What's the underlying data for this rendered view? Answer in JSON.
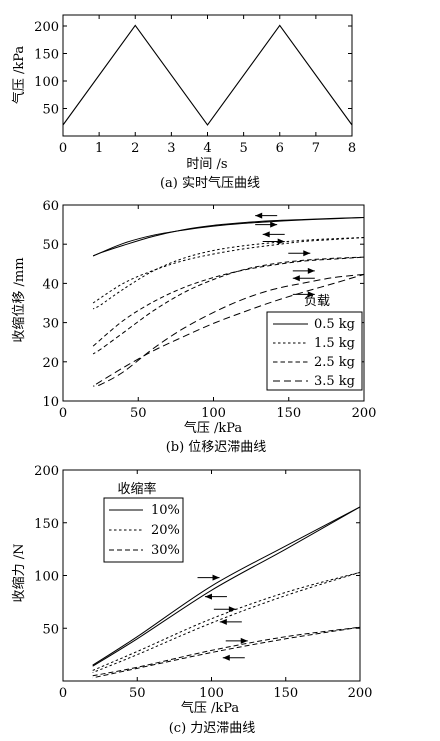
{
  "chart_data": [
    {
      "type": "line",
      "caption": "(a) 实时气压曲线",
      "xlabel": "时间 /s",
      "ylabel": "气压 /kPa",
      "xlim": [
        0,
        8
      ],
      "ylim": [
        0,
        220
      ],
      "xticks": [
        "0",
        "1",
        "2",
        "3",
        "4",
        "5",
        "6",
        "7",
        "8"
      ],
      "yticks": [
        "50",
        "100",
        "150",
        "200"
      ],
      "series": [
        {
          "x": [
            0,
            2,
            4,
            6,
            8
          ],
          "values": [
            20,
            201,
            20,
            201,
            20
          ]
        }
      ]
    },
    {
      "type": "line",
      "caption": "(b) 位移迟滞曲线",
      "xlabel": "气压 /kPa",
      "ylabel": "收缩位移 /mm",
      "xlim": [
        0,
        200
      ],
      "ylim": [
        10,
        60
      ],
      "xticks": [
        "0",
        "50",
        "100",
        "150",
        "200"
      ],
      "yticks": [
        "10",
        "20",
        "30",
        "40",
        "50",
        "60"
      ],
      "legend_title": "负载",
      "legend_position": "bottom-right",
      "series": [
        {
          "name": "0.5 kg",
          "loading": [
            [
              20,
              47
            ],
            [
              40,
              50.2
            ],
            [
              60,
              52.3
            ],
            [
              80,
              53.6
            ],
            [
              100,
              54.6
            ],
            [
              120,
              55.3
            ],
            [
              140,
              55.8
            ],
            [
              160,
              56.2
            ],
            [
              180,
              56.5
            ],
            [
              200,
              56.8
            ]
          ],
          "unloading": [
            [
              200,
              56.8
            ],
            [
              180,
              56.6
            ],
            [
              160,
              56.3
            ],
            [
              140,
              56
            ],
            [
              120,
              55.5
            ],
            [
              100,
              54.8
            ],
            [
              80,
              53.7
            ],
            [
              60,
              52
            ],
            [
              40,
              49.7
            ],
            [
              25,
              47.8
            ],
            [
              20,
              47
            ]
          ]
        },
        {
          "name": "1.5 kg",
          "loading": [
            [
              20,
              35
            ],
            [
              40,
              40
            ],
            [
              60,
              43.3
            ],
            [
              80,
              45.8
            ],
            [
              100,
              47.5
            ],
            [
              120,
              48.8
            ],
            [
              140,
              49.8
            ],
            [
              160,
              50.7
            ],
            [
              180,
              51.2
            ],
            [
              200,
              51.7
            ]
          ],
          "unloading": [
            [
              200,
              51.7
            ],
            [
              180,
              51.4
            ],
            [
              160,
              51
            ],
            [
              140,
              50.4
            ],
            [
              120,
              49.6
            ],
            [
              100,
              48.4
            ],
            [
              80,
              46.4
            ],
            [
              60,
              43.2
            ],
            [
              40,
              38.5
            ],
            [
              25,
              34.5
            ],
            [
              20,
              33.5
            ]
          ]
        },
        {
          "name": "2.5 kg",
          "loading": [
            [
              20,
              24
            ],
            [
              40,
              30.5
            ],
            [
              60,
              35.3
            ],
            [
              80,
              38.9
            ],
            [
              100,
              41.5
            ],
            [
              120,
              43.4
            ],
            [
              140,
              44.7
            ],
            [
              160,
              45.7
            ],
            [
              180,
              46.2
            ],
            [
              200,
              46.7
            ]
          ],
          "unloading": [
            [
              200,
              46.7
            ],
            [
              180,
              46.4
            ],
            [
              160,
              45.9
            ],
            [
              140,
              45
            ],
            [
              120,
              43.5
            ],
            [
              100,
              41
            ],
            [
              80,
              37.6
            ],
            [
              60,
              33
            ],
            [
              40,
              27.4
            ],
            [
              25,
              23.2
            ],
            [
              20,
              22
            ]
          ]
        },
        {
          "name": "3.5 kg",
          "loading": [
            [
              22,
              14.3
            ],
            [
              40,
              18.5
            ],
            [
              60,
              22.8
            ],
            [
              80,
              26.4
            ],
            [
              100,
              29.8
            ],
            [
              120,
              32.7
            ],
            [
              140,
              35.4
            ],
            [
              160,
              37.8
            ],
            [
              180,
              40
            ],
            [
              200,
              42.3
            ]
          ],
          "unloading": [
            [
              200,
              42.3
            ],
            [
              180,
              41.5
            ],
            [
              160,
              40.1
            ],
            [
              140,
              38.5
            ],
            [
              120,
              36
            ],
            [
              100,
              32.6
            ],
            [
              80,
              28.5
            ],
            [
              60,
              23.4
            ],
            [
              40,
              17.4
            ],
            [
              25,
              14.2
            ],
            [
              20,
              13.8
            ]
          ]
        }
      ]
    },
    {
      "type": "line",
      "caption": "(c) 力迟滞曲线",
      "xlabel": "气压 /kPa",
      "ylabel": "收缩力 /N",
      "xlim": [
        0,
        200
      ],
      "ylim": [
        0,
        200
      ],
      "xticks": [
        "0",
        "50",
        "100",
        "150",
        "200"
      ],
      "yticks": [
        "50",
        "100",
        "150",
        "200"
      ],
      "legend_title": "收缩率",
      "legend_position": "top-left",
      "series": [
        {
          "name": "10%",
          "loading": [
            [
              20,
              15
            ],
            [
              50,
              42
            ],
            [
              100,
              90
            ],
            [
              150,
              128
            ],
            [
              200,
              165
            ]
          ],
          "unloading": [
            [
              200,
              165
            ],
            [
              150,
              125
            ],
            [
              100,
              86
            ],
            [
              50,
              40
            ],
            [
              20,
              14
            ]
          ]
        },
        {
          "name": "20%",
          "loading": [
            [
              20,
              10
            ],
            [
              50,
              28
            ],
            [
              100,
              59
            ],
            [
              150,
              84
            ],
            [
              200,
              103
            ]
          ],
          "unloading": [
            [
              200,
              103
            ],
            [
              150,
              81
            ],
            [
              100,
              55
            ],
            [
              50,
              25
            ],
            [
              20,
              8
            ]
          ]
        },
        {
          "name": "30%",
          "loading": [
            [
              20,
              5
            ],
            [
              50,
              13
            ],
            [
              100,
              29
            ],
            [
              150,
              42
            ],
            [
              200,
              51
            ]
          ],
          "unloading": [
            [
              200,
              51
            ],
            [
              150,
              40
            ],
            [
              100,
              27
            ],
            [
              50,
              12
            ],
            [
              20,
              3
            ]
          ]
        }
      ]
    }
  ]
}
